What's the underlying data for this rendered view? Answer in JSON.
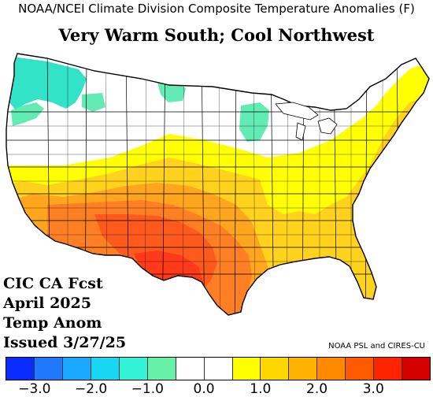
{
  "header": {
    "title": "NOAA/NCEI Climate Division Composite Temperature Anomalies (F)",
    "subtitle": "Very Warm South; Cool Northwest"
  },
  "forecast_info": {
    "line1": "CIC CA Fcst",
    "line2": "April 2025",
    "line3": "Temp Anom",
    "line4": "Issued 3/27/25"
  },
  "credit": "NOAA PSL and CIRES-CU",
  "legend": {
    "colors": [
      "#0b2cff",
      "#1f78ff",
      "#1aa9ff",
      "#19d6f2",
      "#33f2d6",
      "#66f0a8",
      "#ffffff",
      "#ffffff",
      "#ffff00",
      "#ffd700",
      "#ffb300",
      "#ff8a00",
      "#ff5a00",
      "#ff2400",
      "#d40000"
    ],
    "ticks": [
      "−3.0",
      "−2.0",
      "−1.0",
      "0.0",
      "1.0",
      "2.0",
      "3.0"
    ]
  },
  "anomaly_colors": {
    "cool_strong": "#33e3c8",
    "cool_light": "#62ecb4",
    "neutral": "#ffffff",
    "warm_1": "#ffff00",
    "warm_2": "#ffd21e",
    "warm_3": "#ffa51e",
    "warm_4": "#ff8024",
    "warm_5": "#ff5a1e"
  }
}
